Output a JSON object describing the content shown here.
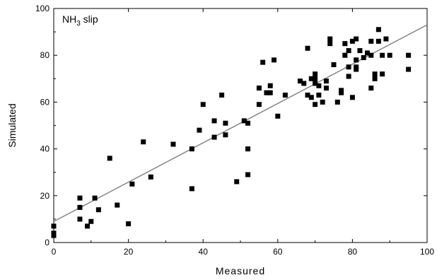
{
  "chart_data": {
    "type": "scatter",
    "title": "",
    "annotation": {
      "main": "NH",
      "sub": "3",
      "rest": " slip"
    },
    "xlabel": "Measured",
    "ylabel": "Simulated",
    "xlim": [
      0,
      100
    ],
    "ylim": [
      0,
      100
    ],
    "xticks": [
      0,
      20,
      40,
      60,
      80,
      100
    ],
    "yticks": [
      0,
      20,
      40,
      60,
      80,
      100
    ],
    "grid": false,
    "legend": "none",
    "colors": {
      "points": "#000000",
      "fit_line": "#808080",
      "axes": "#000000"
    },
    "series": [
      {
        "points": [
          [
            0,
            7
          ],
          [
            0,
            4
          ],
          [
            0,
            3
          ],
          [
            7,
            19
          ],
          [
            7,
            15
          ],
          [
            7,
            10
          ],
          [
            9,
            7
          ],
          [
            10,
            9
          ],
          [
            11,
            19
          ],
          [
            12,
            14
          ],
          [
            15,
            36
          ],
          [
            17,
            16
          ],
          [
            20,
            8
          ],
          [
            21,
            25
          ],
          [
            24,
            43
          ],
          [
            26,
            28
          ],
          [
            32,
            42
          ],
          [
            37,
            40
          ],
          [
            37,
            23
          ],
          [
            39,
            48
          ],
          [
            40,
            59
          ],
          [
            43,
            45
          ],
          [
            43,
            52
          ],
          [
            45,
            63
          ],
          [
            46,
            46
          ],
          [
            46,
            51
          ],
          [
            49,
            26
          ],
          [
            51,
            52
          ],
          [
            52,
            51
          ],
          [
            52,
            40
          ],
          [
            52,
            29
          ],
          [
            55,
            66
          ],
          [
            55,
            59
          ],
          [
            56,
            77
          ],
          [
            57,
            64
          ],
          [
            58,
            64
          ],
          [
            58,
            67
          ],
          [
            59,
            78
          ],
          [
            60,
            54
          ],
          [
            62,
            63
          ],
          [
            66,
            69
          ],
          [
            67,
            68
          ],
          [
            68,
            83
          ],
          [
            68,
            63
          ],
          [
            69,
            70
          ],
          [
            69,
            62
          ],
          [
            70,
            70
          ],
          [
            70,
            59
          ],
          [
            70,
            68
          ],
          [
            70,
            72
          ],
          [
            71,
            67
          ],
          [
            71,
            63
          ],
          [
            72,
            60
          ],
          [
            73,
            69
          ],
          [
            73,
            66
          ],
          [
            74,
            85
          ],
          [
            74,
            87
          ],
          [
            75,
            76
          ],
          [
            76,
            60
          ],
          [
            77,
            64
          ],
          [
            77,
            65
          ],
          [
            78,
            85
          ],
          [
            78,
            80
          ],
          [
            79,
            82
          ],
          [
            79,
            71
          ],
          [
            79,
            75
          ],
          [
            80,
            62
          ],
          [
            80,
            86
          ],
          [
            81,
            87
          ],
          [
            81,
            78
          ],
          [
            81,
            74
          ],
          [
            81,
            75
          ],
          [
            82,
            82
          ],
          [
            83,
            79
          ],
          [
            84,
            81
          ],
          [
            85,
            66
          ],
          [
            85,
            86
          ],
          [
            85,
            80
          ],
          [
            86,
            70
          ],
          [
            86,
            72
          ],
          [
            87,
            91
          ],
          [
            87,
            86
          ],
          [
            88,
            80
          ],
          [
            88,
            72
          ],
          [
            89,
            87
          ],
          [
            90,
            80
          ],
          [
            95,
            80
          ],
          [
            95,
            74
          ]
        ]
      }
    ],
    "fit_line": {
      "x": [
        0,
        100
      ],
      "y": [
        9,
        93
      ]
    }
  }
}
